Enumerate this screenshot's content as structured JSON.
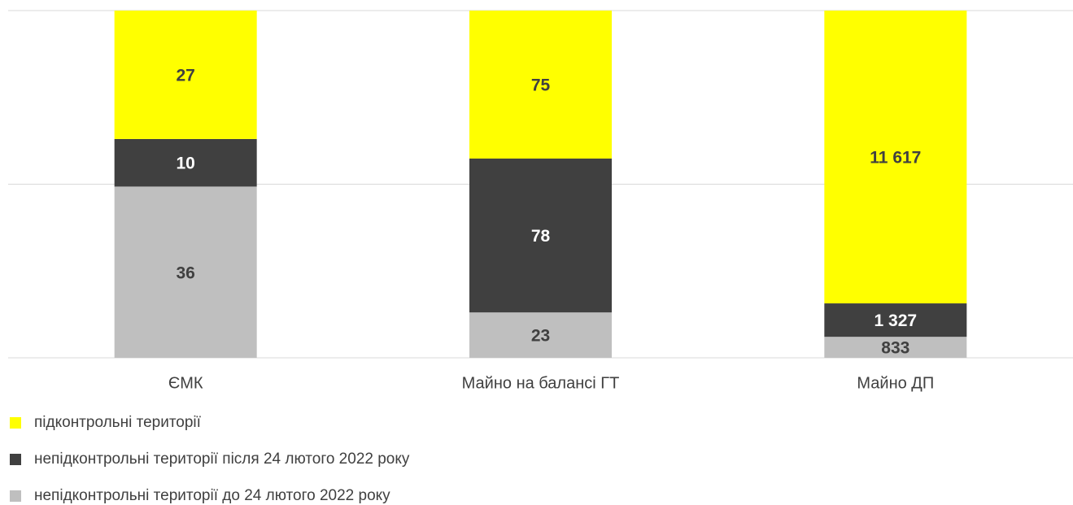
{
  "chart_data": {
    "type": "bar",
    "stack": "percent",
    "categories": [
      "ЄМК",
      "Майно на балансі ГТ",
      "Майно ДП"
    ],
    "series": [
      {
        "name": "підконтрольні території",
        "color": "#ffff00",
        "label_color": "#404040",
        "values": [
          27,
          75,
          11617
        ],
        "value_labels": [
          "27",
          "75",
          "11 617"
        ]
      },
      {
        "name": "непідконтрольні території після 24 лютого 2022 року",
        "color": "#404040",
        "label_color": "#ffffff",
        "values": [
          10,
          78,
          1327
        ],
        "value_labels": [
          "10",
          "78",
          "1 327"
        ]
      },
      {
        "name": "непідконтрольні території до 24 лютого 2022 року",
        "color": "#bfbfbf",
        "label_color": "#404040",
        "values": [
          36,
          23,
          833
        ]
      }
    ],
    "ylim": [
      0,
      100
    ],
    "yticks": [
      0,
      50,
      100
    ],
    "grid": true
  }
}
